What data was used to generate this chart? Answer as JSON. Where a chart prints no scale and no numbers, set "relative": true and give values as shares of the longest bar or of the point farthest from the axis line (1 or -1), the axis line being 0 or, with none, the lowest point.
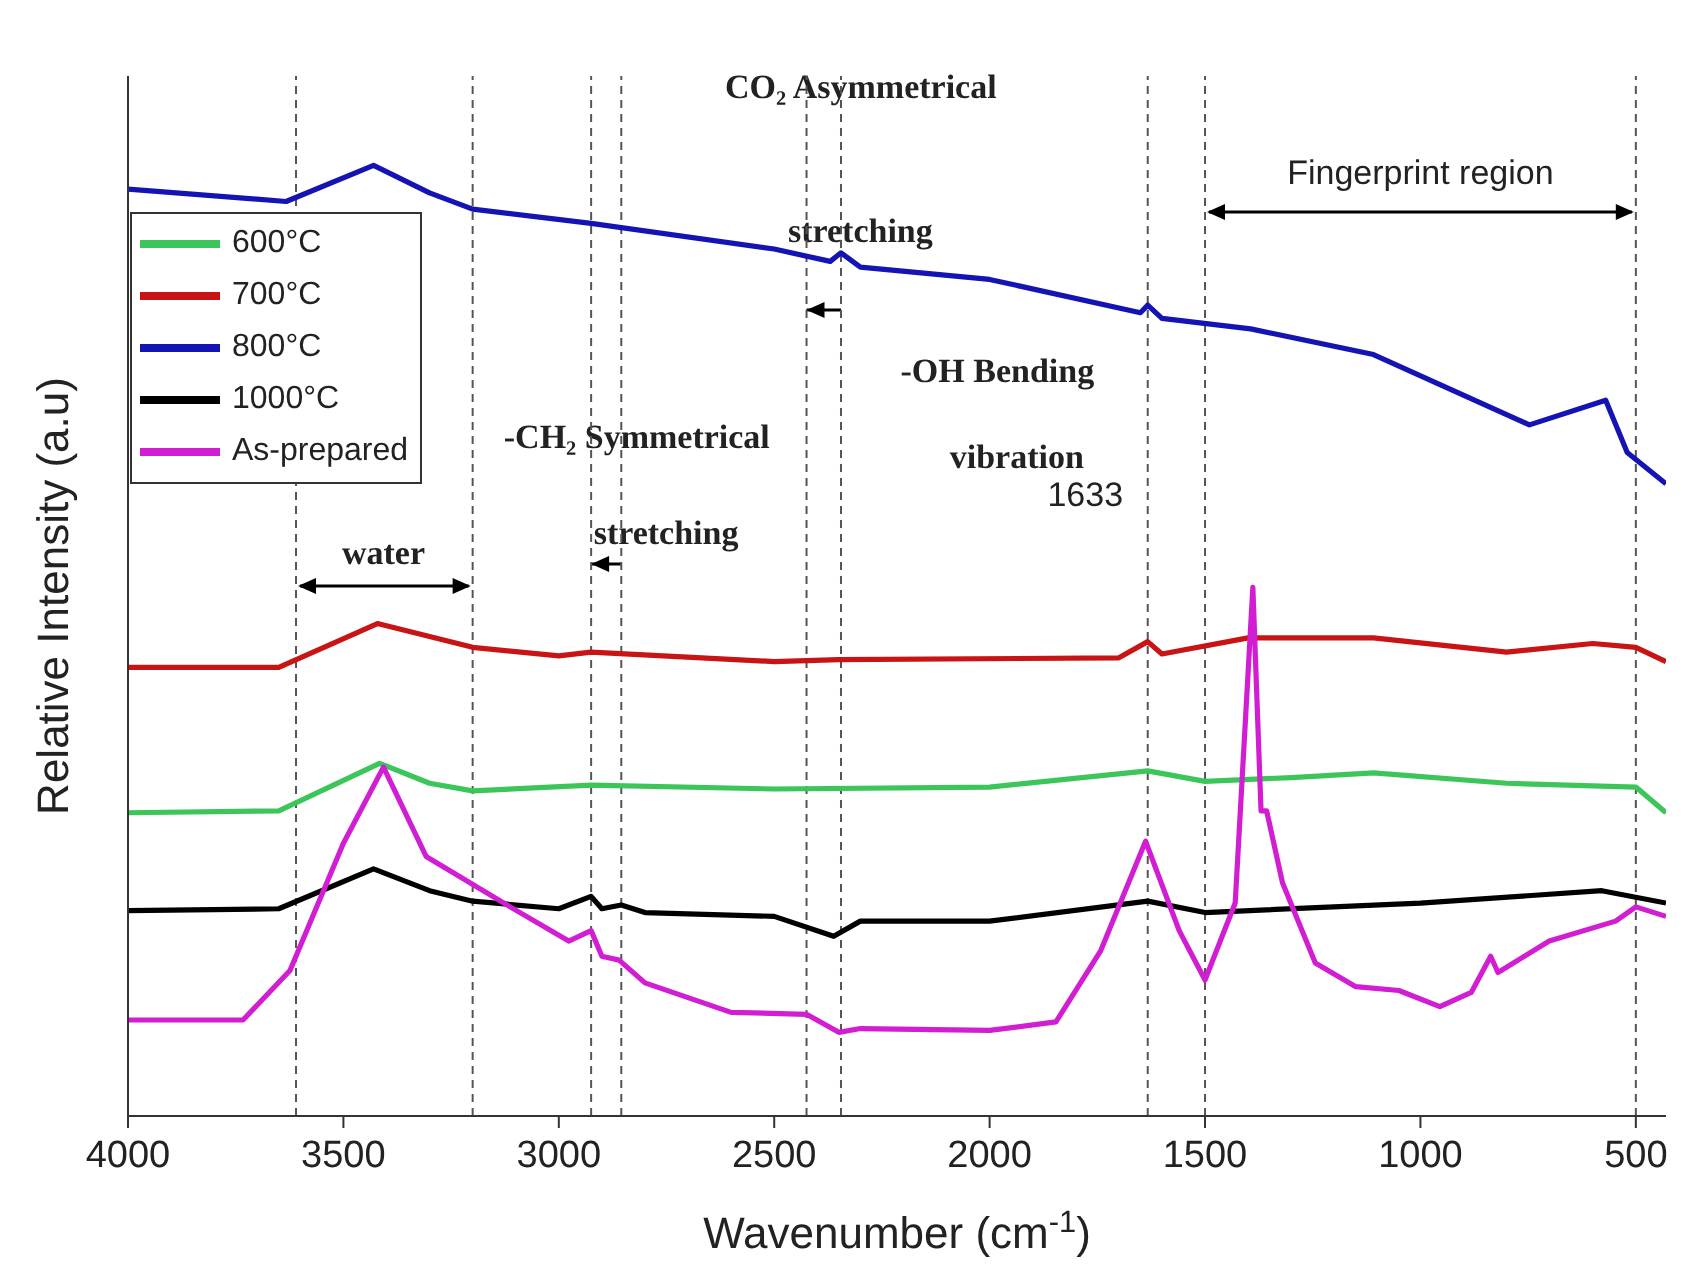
{
  "chart_data": {
    "type": "line",
    "relative": true,
    "xlabel": "Wavenumber (cm$^{-1}$)",
    "ylabel": "Relative Intensity (a.u)",
    "xlim": [
      4000,
      430
    ],
    "xticks": [
      4000,
      3500,
      3000,
      2500,
      2000,
      1500,
      1000,
      500
    ],
    "legend": "top left",
    "marker": "none",
    "line_style": "solid",
    "series": [
      {
        "name": "600°C",
        "color": "#3cc65a",
        "x": [
          4000,
          3650,
          3416,
          3300,
          3200,
          2925,
          2500,
          2000,
          1633,
          1500,
          1300,
          1109,
          800,
          500,
          430
        ],
        "values": [
          0.319,
          0.321,
          0.371,
          0.35,
          0.342,
          0.348,
          0.344,
          0.346,
          0.363,
          0.352,
          0.356,
          0.361,
          0.35,
          0.346,
          0.319
        ]
      },
      {
        "name": "700°C",
        "color": "#c81414",
        "x": [
          4000,
          3650,
          3421,
          3200,
          3000,
          2925,
          2500,
          2350,
          1700,
          1633,
          1600,
          1400,
          1109,
          800,
          600,
          500,
          430
        ],
        "values": [
          0.472,
          0.472,
          0.518,
          0.493,
          0.484,
          0.488,
          0.478,
          0.48,
          0.482,
          0.499,
          0.486,
          0.503,
          0.503,
          0.488,
          0.497,
          0.493,
          0.478
        ]
      },
      {
        "name": "800°C",
        "color": "#1414b4",
        "x": [
          4000,
          3633,
          3430,
          3300,
          3200,
          2925,
          2500,
          2370,
          2345,
          2300,
          2000,
          1650,
          1633,
          1600,
          1394,
          1109,
          747,
          570,
          520,
          430
        ],
        "values": [
          0.975,
          0.962,
          1,
          0.971,
          0.954,
          0.939,
          0.912,
          0.899,
          0.908,
          0.893,
          0.88,
          0.845,
          0.853,
          0.839,
          0.828,
          0.801,
          0.727,
          0.753,
          0.698,
          0.665
        ]
      },
      {
        "name": "1000°C",
        "color": "#000000",
        "x": [
          4000,
          3650,
          3430,
          3300,
          3200,
          3000,
          2925,
          2900,
          2855,
          2800,
          2500,
          2362,
          2300,
          2000,
          1633,
          1500,
          1000,
          579,
          430
        ],
        "values": [
          0.216,
          0.218,
          0.26,
          0.237,
          0.226,
          0.218,
          0.231,
          0.218,
          0.222,
          0.214,
          0.21,
          0.189,
          0.205,
          0.205,
          0.226,
          0.214,
          0.224,
          0.237,
          0.224
        ]
      },
      {
        "name": "As-prepared",
        "color": "#d21ed2",
        "x": [
          4000,
          3733,
          3624,
          3500,
          3407,
          3308,
          3113,
          2977,
          2925,
          2900,
          2860,
          2800,
          2600,
          2425,
          2350,
          2300,
          2000,
          1846,
          1742,
          1638,
          1560,
          1500,
          1430,
          1389,
          1370,
          1357,
          1320,
          1244,
          1150,
          1050,
          955,
          882,
          837,
          820,
          701,
          547,
          500,
          430
        ],
        "values": [
          0.101,
          0.101,
          0.153,
          0.287,
          0.367,
          0.273,
          0.22,
          0.184,
          0.195,
          0.168,
          0.164,
          0.14,
          0.109,
          0.107,
          0.088,
          0.092,
          0.09,
          0.099,
          0.174,
          0.289,
          0.195,
          0.143,
          0.224,
          0.556,
          0.321,
          0.321,
          0.245,
          0.161,
          0.136,
          0.132,
          0.115,
          0.13,
          0.168,
          0.151,
          0.184,
          0.205,
          0.22,
          0.21
        ]
      }
    ],
    "ref_lines": [
      {
        "axis": "x",
        "value": 3610,
        "color": "#555555",
        "line_style": "dashed"
      },
      {
        "axis": "x",
        "value": 3200,
        "color": "#555555",
        "line_style": "dashed"
      },
      {
        "axis": "x",
        "value": 2925,
        "color": "#555555",
        "line_style": "dashed"
      },
      {
        "axis": "x",
        "value": 2855,
        "color": "#555555",
        "line_style": "dashed"
      },
      {
        "axis": "x",
        "value": 2425,
        "color": "#555555",
        "line_style": "dashed"
      },
      {
        "axis": "x",
        "value": 2345,
        "color": "#555555",
        "line_style": "dashed"
      },
      {
        "axis": "x",
        "value": 1633,
        "color": "#555555",
        "line_style": "dashed"
      },
      {
        "axis": "x",
        "value": 1500,
        "color": "#555555",
        "line_style": "dashed"
      },
      {
        "axis": "x",
        "value": 500,
        "color": "#555555",
        "line_style": "dashed"
      }
    ],
    "annotations": [
      "CO₂ Asymmetrical",
      "stretching",
      "-CH₂ Symmetrical",
      "stretching",
      "water",
      "-OH  Bending",
      "vibration",
      "1633",
      "Fingerprint region"
    ]
  }
}
